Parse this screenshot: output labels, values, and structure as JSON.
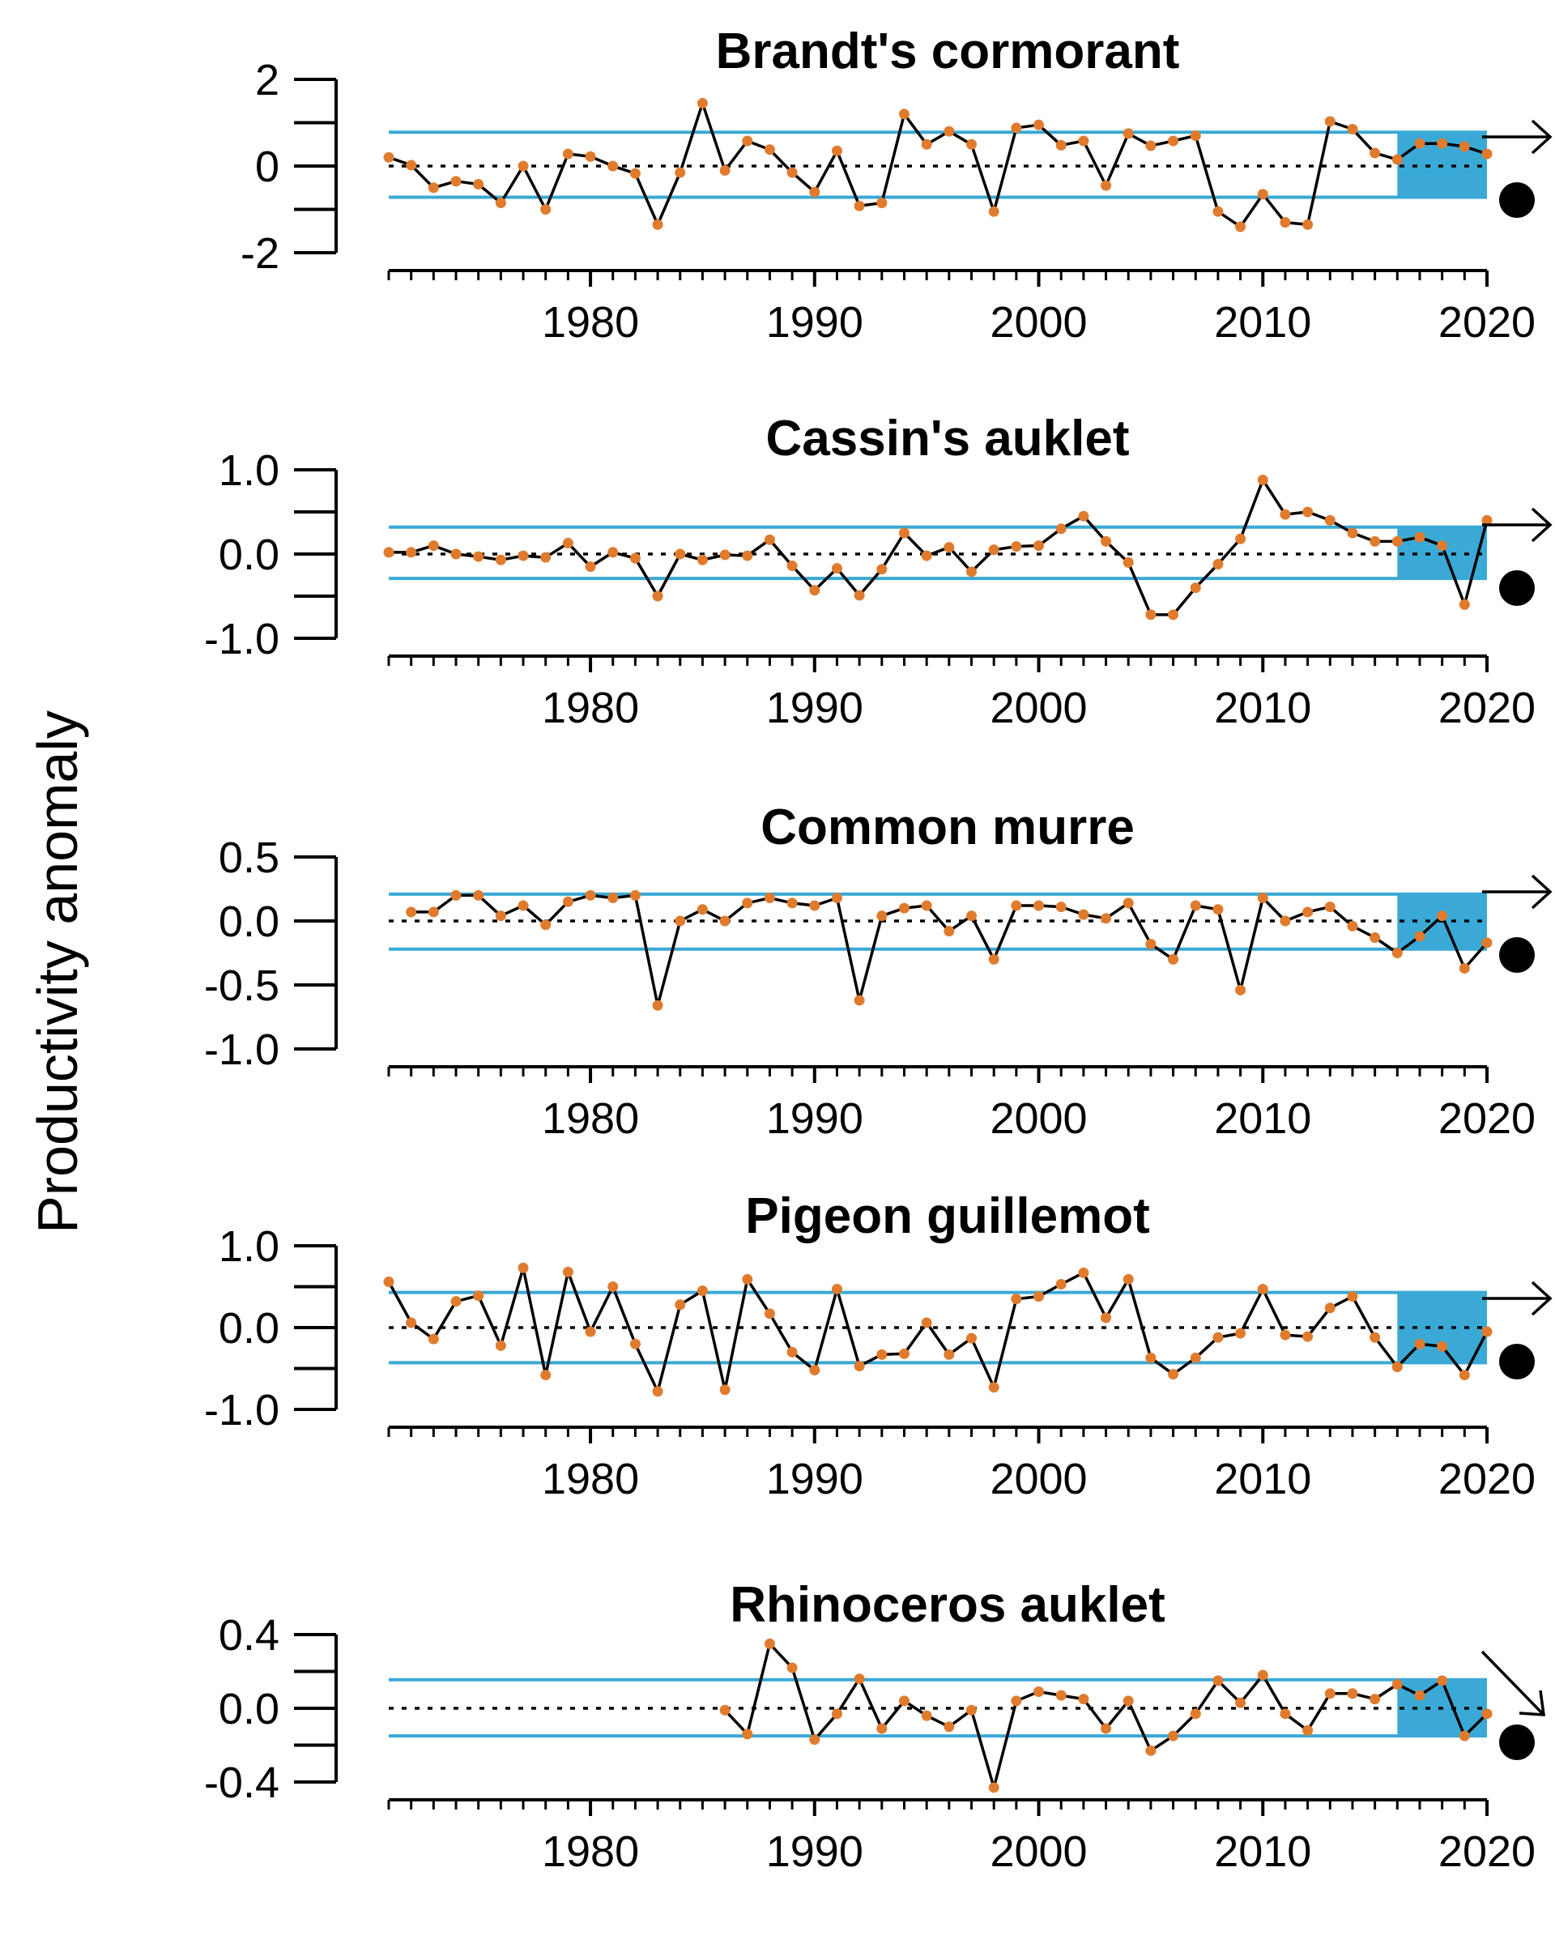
{
  "figure": {
    "ylabel": "Productivity anomaly"
  },
  "colors": {
    "band": "#3aa9d6",
    "line": "#000000",
    "points": "#e07b2e",
    "zero_line": "#000000"
  },
  "chart_data": [
    {
      "type": "line",
      "title": "Brandt's cormorant",
      "ylabel": "Productivity anomaly",
      "xlim": [
        1971,
        2020
      ],
      "ylim": [
        -2,
        2
      ],
      "yticks": [
        -2,
        -1,
        0,
        1,
        2
      ],
      "ytick_labels": [
        "2",
        "0",
        "-2"
      ],
      "ytick_label_values": [
        2,
        0,
        -2
      ],
      "xtick_labels": [
        "1980",
        "1990",
        "2000",
        "2010",
        "2020"
      ],
      "band": [
        -0.72,
        0.78
      ],
      "highlight_years": [
        2016,
        2020
      ],
      "trend_symbol": "arrow-right",
      "mean_symbol": "filled-circle-below",
      "series": [
        {
          "x": [
            1971,
            1972,
            1973,
            1974,
            1975,
            1976,
            1977,
            1978,
            1979,
            1980,
            1981,
            1982,
            1983,
            1984,
            1985,
            1986,
            1987,
            1988,
            1989,
            1990,
            1991,
            1992,
            1993,
            1994,
            1995,
            1996,
            1997,
            1998,
            1999,
            2000,
            2001,
            2002,
            2003,
            2004,
            2005,
            2006,
            2007,
            2008,
            2009,
            2010,
            2011,
            2012,
            2013,
            2014,
            2015,
            2016,
            2017,
            2018,
            2019,
            2020
          ],
          "y": [
            0.2,
            0.02,
            -0.5,
            -0.35,
            -0.42,
            -0.85,
            0.0,
            -1.0,
            0.28,
            0.22,
            0.0,
            -0.17,
            -1.35,
            -0.15,
            1.45,
            -0.1,
            0.58,
            0.38,
            -0.15,
            -0.6,
            0.35,
            -0.92,
            -0.85,
            1.2,
            0.5,
            0.8,
            0.5,
            -1.05,
            0.88,
            0.95,
            0.48,
            0.58,
            -0.45,
            0.75,
            0.47,
            0.58,
            0.7,
            -1.05,
            -1.4,
            -0.65,
            -1.3,
            -1.35,
            1.03,
            0.85,
            0.3,
            0.15,
            0.52,
            0.52,
            0.45,
            0.28
          ]
        }
      ]
    },
    {
      "type": "line",
      "title": "Cassin's auklet",
      "ylabel": "Productivity anomaly",
      "xlim": [
        1971,
        2020
      ],
      "ylim": [
        -1,
        1
      ],
      "yticks": [
        -1,
        -0.5,
        0,
        0.5,
        1
      ],
      "ytick_labels": [
        "1.0",
        "0.0",
        "-1.0"
      ],
      "ytick_label_values": [
        1,
        0,
        -1
      ],
      "xtick_labels": [
        "1980",
        "1990",
        "2000",
        "2010",
        "2020"
      ],
      "band": [
        -0.29,
        0.32
      ],
      "highlight_years": [
        2016,
        2020
      ],
      "trend_symbol": "arrow-right",
      "mean_symbol": "filled-circle-below",
      "series": [
        {
          "x": [
            1971,
            1972,
            1973,
            1974,
            1975,
            1976,
            1977,
            1978,
            1979,
            1980,
            1981,
            1982,
            1983,
            1984,
            1985,
            1986,
            1987,
            1988,
            1989,
            1990,
            1991,
            1992,
            1993,
            1994,
            1995,
            1996,
            1997,
            1998,
            1999,
            2000,
            2001,
            2002,
            2003,
            2004,
            2005,
            2006,
            2007,
            2008,
            2009,
            2010,
            2011,
            2012,
            2013,
            2014,
            2015,
            2016,
            2017,
            2018,
            2019,
            2020
          ],
          "y": [
            0.02,
            0.02,
            0.1,
            0.0,
            -0.03,
            -0.07,
            -0.02,
            -0.04,
            0.13,
            -0.15,
            0.02,
            -0.05,
            -0.5,
            0.0,
            -0.07,
            -0.01,
            -0.02,
            0.17,
            -0.14,
            -0.43,
            -0.17,
            -0.49,
            -0.18,
            0.25,
            -0.02,
            0.08,
            -0.21,
            0.05,
            0.09,
            0.1,
            0.3,
            0.45,
            0.15,
            -0.1,
            -0.72,
            -0.72,
            -0.4,
            -0.12,
            0.18,
            0.88,
            0.47,
            0.5,
            0.4,
            0.25,
            0.15,
            0.15,
            0.2,
            0.1,
            -0.6,
            0.4
          ]
        }
      ]
    },
    {
      "type": "line",
      "title": "Common murre",
      "ylabel": "Productivity anomaly",
      "xlim": [
        1971,
        2020
      ],
      "ylim": [
        -1,
        0.5
      ],
      "yticks": [
        -1,
        -0.5,
        0,
        0.5
      ],
      "ytick_labels": [
        "0.5",
        "0.0",
        "-0.5",
        "-1.0"
      ],
      "ytick_label_values": [
        0.5,
        0,
        -0.5,
        -1
      ],
      "xtick_labels": [
        "1980",
        "1990",
        "2000",
        "2010",
        "2020"
      ],
      "band": [
        -0.22,
        0.21
      ],
      "highlight_years": [
        2016,
        2020
      ],
      "trend_symbol": "arrow-right",
      "mean_symbol": "filled-circle-below",
      "series": [
        {
          "x": [
            1972,
            1973,
            1974,
            1975,
            1976,
            1977,
            1978,
            1979,
            1980,
            1981,
            1982,
            1983,
            1984,
            1985,
            1986,
            1987,
            1988,
            1989,
            1990,
            1991,
            1992,
            1993,
            1994,
            1995,
            1996,
            1997,
            1998,
            1999,
            2000,
            2001,
            2002,
            2003,
            2004,
            2005,
            2006,
            2007,
            2008,
            2009,
            2010,
            2011,
            2012,
            2013,
            2014,
            2015,
            2016,
            2017,
            2018,
            2019,
            2020
          ],
          "y": [
            0.07,
            0.07,
            0.2,
            0.2,
            0.04,
            0.12,
            -0.03,
            0.15,
            0.2,
            0.18,
            0.2,
            -0.66,
            0.0,
            0.09,
            0.0,
            0.14,
            0.18,
            0.14,
            0.12,
            0.18,
            -0.62,
            0.04,
            0.1,
            0.12,
            -0.08,
            0.04,
            -0.3,
            0.12,
            0.12,
            0.11,
            0.05,
            0.02,
            0.14,
            -0.18,
            -0.3,
            0.12,
            0.09,
            -0.54,
            0.18,
            0.0,
            0.07,
            0.11,
            -0.04,
            -0.13,
            -0.25,
            -0.12,
            0.04,
            -0.37,
            -0.17
          ]
        }
      ]
    },
    {
      "type": "line",
      "title": "Pigeon guillemot",
      "ylabel": "Productivity anomaly",
      "xlim": [
        1971,
        2020
      ],
      "ylim": [
        -1,
        1
      ],
      "yticks": [
        -1,
        -0.5,
        0,
        0.5,
        1
      ],
      "ytick_labels": [
        "1.0",
        "0.0",
        "-1.0"
      ],
      "ytick_label_values": [
        1,
        0,
        -1
      ],
      "xtick_labels": [
        "1980",
        "1990",
        "2000",
        "2010",
        "2020"
      ],
      "band": [
        -0.43,
        0.43
      ],
      "highlight_years": [
        2016,
        2020
      ],
      "trend_symbol": "arrow-right",
      "mean_symbol": "filled-circle-below",
      "series": [
        {
          "x": [
            1971,
            1972,
            1973,
            1974,
            1975,
            1976,
            1977,
            1978,
            1979,
            1980,
            1981,
            1982,
            1983,
            1984,
            1985,
            1986,
            1987,
            1988,
            1989,
            1990,
            1991,
            1992,
            1993,
            1994,
            1995,
            1996,
            1997,
            1998,
            1999,
            2000,
            2001,
            2002,
            2003,
            2004,
            2005,
            2006,
            2007,
            2008,
            2009,
            2010,
            2011,
            2012,
            2013,
            2014,
            2015,
            2016,
            2017,
            2018,
            2019,
            2020
          ],
          "y": [
            0.56,
            0.06,
            -0.14,
            0.32,
            0.39,
            -0.22,
            0.73,
            -0.58,
            0.68,
            -0.05,
            0.5,
            -0.2,
            -0.78,
            0.28,
            0.45,
            -0.76,
            0.59,
            0.17,
            -0.3,
            -0.52,
            0.47,
            -0.47,
            -0.33,
            -0.32,
            0.06,
            -0.33,
            -0.13,
            -0.73,
            0.35,
            0.38,
            0.53,
            0.67,
            0.12,
            0.59,
            -0.37,
            -0.57,
            -0.37,
            -0.12,
            -0.07,
            0.47,
            -0.09,
            -0.11,
            0.24,
            0.38,
            -0.12,
            -0.48,
            -0.2,
            -0.23,
            -0.58,
            -0.05
          ]
        }
      ]
    },
    {
      "type": "line",
      "title": "Rhinoceros auklet",
      "ylabel": "Productivity anomaly",
      "xlim": [
        1971,
        2020
      ],
      "ylim": [
        -0.4,
        0.4
      ],
      "yticks": [
        -0.4,
        -0.2,
        0,
        0.2,
        0.4
      ],
      "ytick_labels": [
        "0.4",
        "0.0",
        "-0.4"
      ],
      "ytick_label_values": [
        0.4,
        0,
        -0.4
      ],
      "xtick_labels": [
        "1980",
        "1990",
        "2000",
        "2010",
        "2020"
      ],
      "band": [
        -0.15,
        0.155
      ],
      "highlight_years": [
        2016,
        2020
      ],
      "trend_symbol": "arrow-down-right",
      "mean_symbol": "filled-circle-below",
      "series": [
        {
          "x": [
            1986,
            1987,
            1988,
            1989,
            1990,
            1991,
            1992,
            1993,
            1994,
            1995,
            1996,
            1997,
            1998,
            1999,
            2000,
            2001,
            2002,
            2003,
            2004,
            2005,
            2006,
            2007,
            2008,
            2009,
            2010,
            2011,
            2012,
            2013,
            2014,
            2015,
            2016,
            2017,
            2018,
            2019,
            2020
          ],
          "y": [
            -0.01,
            -0.14,
            0.35,
            0.22,
            -0.17,
            -0.03,
            0.16,
            -0.11,
            0.04,
            -0.04,
            -0.1,
            -0.01,
            -0.43,
            0.04,
            0.09,
            0.07,
            0.05,
            -0.11,
            0.04,
            -0.23,
            -0.15,
            -0.03,
            0.15,
            0.03,
            0.18,
            -0.03,
            -0.12,
            0.08,
            0.08,
            0.05,
            0.13,
            0.07,
            0.15,
            -0.15,
            -0.03
          ]
        }
      ]
    }
  ]
}
